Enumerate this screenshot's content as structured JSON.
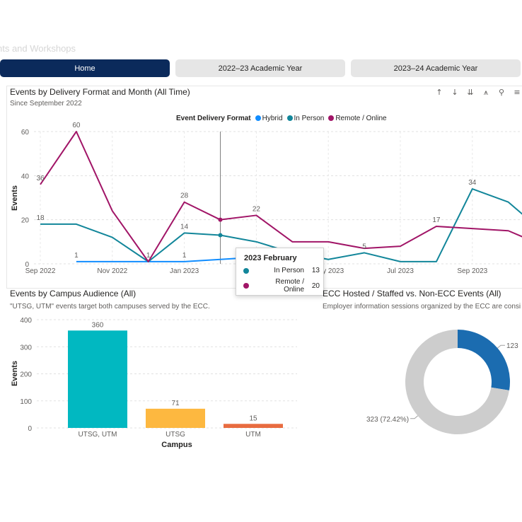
{
  "page": {
    "title": "nts and Workshops"
  },
  "tabs": [
    {
      "label": "Home"
    },
    {
      "label": "2022–23 Academic Year"
    },
    {
      "label": "2023–24 Academic Year"
    }
  ],
  "toolbar": {
    "icons": [
      "arrow-up-icon",
      "arrow-down-icon",
      "double-arrow-down-icon",
      "expand-hierarchy-icon",
      "pin-icon",
      "filter-icon"
    ],
    "glyphs": [
      "↑",
      "↓",
      "⇊",
      "⩚",
      "⚲",
      "≡"
    ]
  },
  "line_visual": {
    "title": "Events by Delivery Format and Month (All Time)",
    "subtitle": "Since September 2022",
    "legend_title": "Event Delivery Format",
    "legend": [
      {
        "name": "Hybrid",
        "color": "#118dff"
      },
      {
        "name": "In Person",
        "color": "#12869a"
      },
      {
        "name": "Remote / Online",
        "color": "#a11567"
      }
    ],
    "tooltip": {
      "title": "2023 February",
      "rows": [
        {
          "label": "In Person",
          "value": "13",
          "color": "#12869a"
        },
        {
          "label": "Remote / Online",
          "value": "20",
          "color": "#a11567"
        }
      ]
    }
  },
  "bar_visual": {
    "title": "Events by Campus Audience (All)",
    "subtitle": "\"UTSG, UTM\" events target both campuses served by the ECC."
  },
  "donut_visual": {
    "title": "ECC Hosted / Staffed vs. Non-ECC Events (All)",
    "subtitle": "Employer information sessions organized by the ECC are consi"
  },
  "chart_data": [
    {
      "type": "line",
      "title": "Events by Delivery Format and Month (All Time)",
      "subtitle": "Since September 2022",
      "ylabel": "Events",
      "xlabel": "",
      "ylim": [
        0,
        60
      ],
      "yticks": [
        0,
        20,
        40,
        60
      ],
      "x": [
        "2022-09",
        "2022-10",
        "2022-11",
        "2022-12",
        "2023-01",
        "2023-02",
        "2023-03",
        "2023-04",
        "2023-05",
        "2023-06",
        "2023-07",
        "2023-08",
        "2023-09",
        "2023-10",
        "2023-11"
      ],
      "xtick_labels": [
        {
          "x": "2022-09",
          "label": "Sep 2022"
        },
        {
          "x": "2022-11",
          "label": "Nov 2022"
        },
        {
          "x": "2023-01",
          "label": "Jan 2023"
        },
        {
          "x": "2023-03",
          "label": "Mar 2023"
        },
        {
          "x": "2023-05",
          "label": "May 2023"
        },
        {
          "x": "2023-07",
          "label": "Jul 2023"
        },
        {
          "x": "2023-09",
          "label": "Sep 2023"
        }
      ],
      "grid": true,
      "legend_position": "top-center",
      "series": [
        {
          "name": "Hybrid",
          "color": "#118dff",
          "values": [
            null,
            1,
            1,
            1,
            1,
            2,
            3,
            null,
            null,
            null,
            null,
            null,
            null,
            null,
            null
          ],
          "labels": [
            {
              "x": "2022-10",
              "text": "1"
            },
            {
              "x": "2022-12",
              "text": "1"
            },
            {
              "x": "2023-01",
              "text": "1"
            }
          ]
        },
        {
          "name": "In Person",
          "color": "#12869a",
          "values": [
            18,
            18,
            12,
            1,
            14,
            13,
            10,
            5,
            2,
            5,
            1,
            1,
            34,
            28,
            14
          ],
          "labels": [
            {
              "x": "2022-09",
              "text": "18"
            },
            {
              "x": "2023-01",
              "text": "14"
            },
            {
              "x": "2023-06",
              "text": "5"
            },
            {
              "x": "2023-09",
              "text": "34"
            }
          ]
        },
        {
          "name": "Remote / Online",
          "color": "#a11567",
          "values": [
            36,
            60,
            24,
            1,
            28,
            20,
            22,
            10,
            10,
            7,
            8,
            17,
            16,
            15,
            8
          ],
          "labels": [
            {
              "x": "2022-09",
              "text": "36"
            },
            {
              "x": "2022-10",
              "text": "60"
            },
            {
              "x": "2023-01",
              "text": "28"
            },
            {
              "x": "2023-03",
              "text": "22"
            },
            {
              "x": "2023-08",
              "text": "17"
            }
          ]
        }
      ],
      "tooltip_x": "2023-02"
    },
    {
      "type": "bar",
      "title": "Events by Campus Audience (All)",
      "subtitle": "\"UTSG, UTM\" events target both campuses served by the ECC.",
      "xlabel": "Campus",
      "ylabel": "Events",
      "ylim": [
        0,
        400
      ],
      "yticks": [
        0,
        100,
        200,
        300,
        400
      ],
      "categories": [
        "UTSG, UTM",
        "UTSG",
        "UTM"
      ],
      "values": [
        360,
        71,
        15
      ],
      "colors": [
        "#01b8c1",
        "#fdb840",
        "#e86c40"
      ]
    },
    {
      "type": "pie",
      "donut": true,
      "title": "ECC Hosted / Staffed vs. Non-ECC Events (All)",
      "subtitle": "Employer information sessions organized by the ECC are consi",
      "values": [
        123,
        323
      ],
      "colors": [
        "#1b6cb0",
        "#cdcdcd"
      ],
      "labels": [
        "123",
        "323 (72.42%)"
      ]
    }
  ]
}
